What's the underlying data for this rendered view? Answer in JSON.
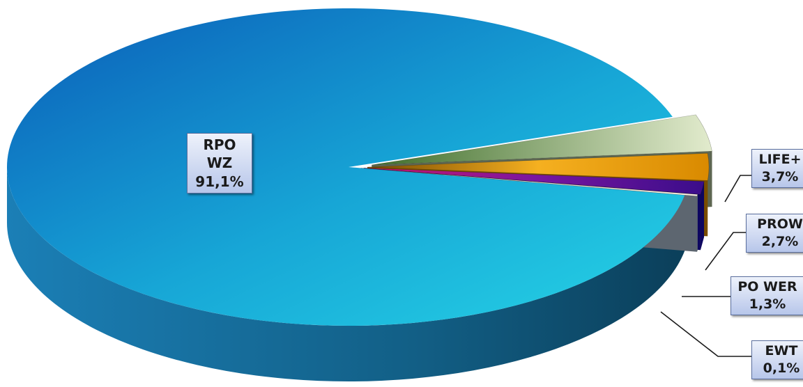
{
  "chart_data": {
    "type": "pie",
    "style": "3d-exploded",
    "slices": [
      {
        "name": "RPO WZ",
        "value": 91.1,
        "label": "91,1%",
        "color": "#22c4e0"
      },
      {
        "name": "LIFE+",
        "value": 3.7,
        "label": "3,7%",
        "color": "#a9bf86"
      },
      {
        "name": "PROW",
        "value": 2.7,
        "label": "2,7%",
        "color": "#f2a20a"
      },
      {
        "name": "PO WER",
        "value": 1.3,
        "label": "1,3%",
        "color": "#6a1090"
      },
      {
        "name": "EWT",
        "value": 0.1,
        "label": "0,1%",
        "color": "#f7ead2"
      }
    ]
  }
}
